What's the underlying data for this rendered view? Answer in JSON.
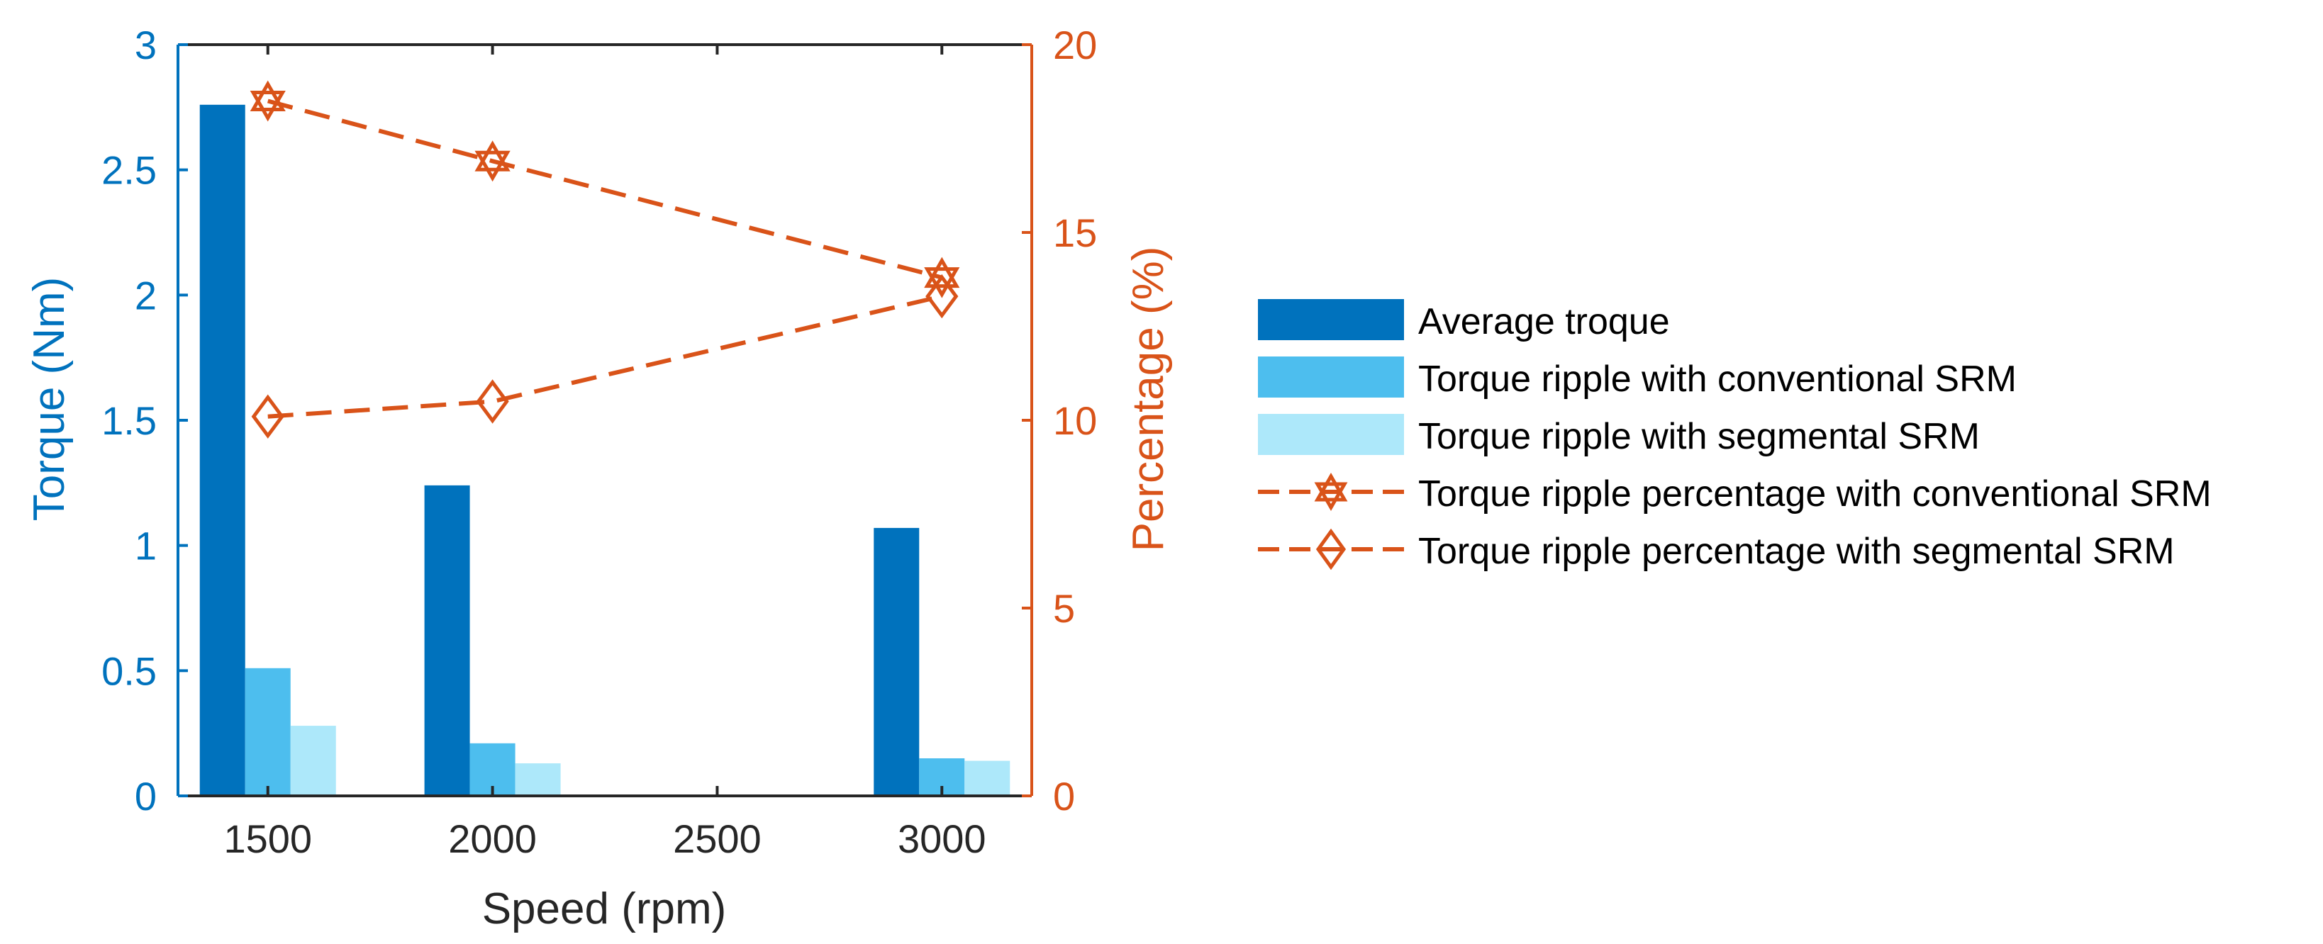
{
  "chart_data": {
    "type": "bar",
    "title": "",
    "x": [
      1500,
      2000,
      3000
    ],
    "xticks": [
      1500,
      2000,
      2500,
      3000
    ],
    "xlabel": "Speed (rpm)",
    "xlim": [
      1300,
      3200
    ],
    "ylabel_left": "Torque (Nm)",
    "ylim_left": [
      0,
      3
    ],
    "yticks_left": [
      0,
      0.5,
      1,
      1.5,
      2,
      2.5,
      3
    ],
    "ylabel_right": "Percentage (%)",
    "ylim_right": [
      0,
      20
    ],
    "yticks_right": [
      0,
      5,
      10,
      15,
      20
    ],
    "grid": false,
    "legend_position": "outside-right",
    "series": [
      {
        "name": "Average troque",
        "kind": "bar",
        "axis": "left",
        "values": [
          2.76,
          1.24,
          1.07
        ],
        "color": "#0072BD"
      },
      {
        "name": "Torque ripple with conventional SRM",
        "kind": "bar",
        "axis": "left",
        "values": [
          0.51,
          0.21,
          0.15
        ],
        "color": "#4DBEEE"
      },
      {
        "name": "Torque ripple with segmental SRM",
        "kind": "bar",
        "axis": "left",
        "values": [
          0.28,
          0.13,
          0.14
        ],
        "color": "#ADE8FA"
      },
      {
        "name": "Torque ripple percentage with conventional SRM",
        "kind": "line",
        "axis": "right",
        "marker": "hexagram",
        "line_style": "dashed",
        "values": [
          18.5,
          16.9,
          13.8
        ],
        "color": "#D95319"
      },
      {
        "name": "Torque ripple percentage with segmental SRM",
        "kind": "line",
        "axis": "right",
        "marker": "diamond",
        "line_style": "dashed",
        "values": [
          10.1,
          10.5,
          13.3
        ],
        "color": "#D95319"
      }
    ],
    "colors": {
      "left_axis": "#0072BD",
      "right_axis": "#D95319",
      "bottom_axis": "#262626"
    }
  }
}
